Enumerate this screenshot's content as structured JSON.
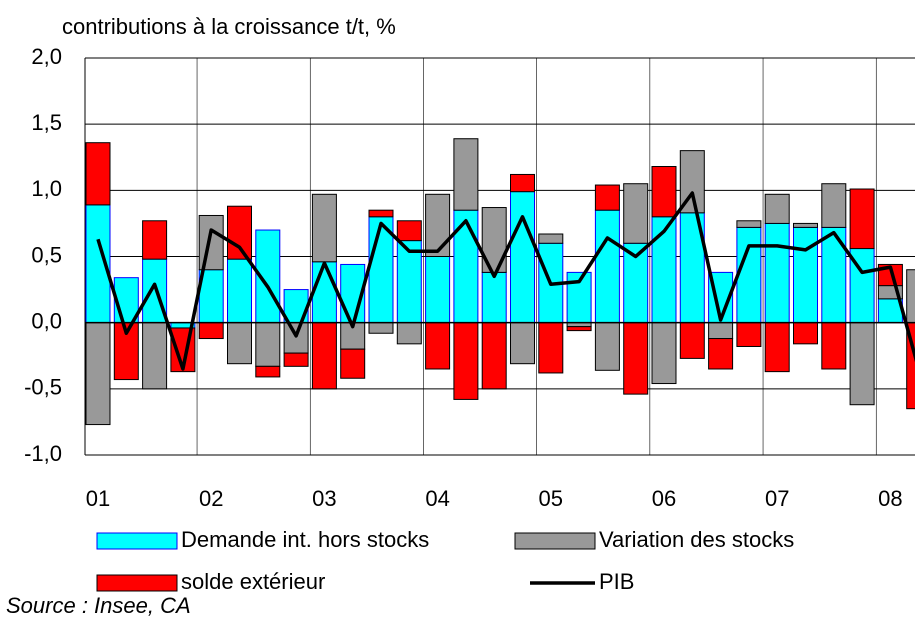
{
  "chart_data": {
    "type": "bar",
    "title": "contributions à la croissance t/t, %",
    "source": "Source : Insee, CA",
    "categories": [
      "01",
      null,
      null,
      null,
      "02",
      null,
      null,
      null,
      "03",
      null,
      null,
      null,
      "04",
      null,
      null,
      null,
      "05",
      null,
      null,
      null,
      "06",
      null,
      null,
      null,
      "07",
      null,
      null,
      null,
      "08",
      null
    ],
    "series": [
      {
        "name": "Demande int. hors stocks",
        "color": "#00ffff",
        "values": [
          0.89,
          0.34,
          0.48,
          -0.04,
          0.4,
          0.48,
          0.7,
          0.25,
          0.46,
          0.44,
          0.8,
          0.62,
          0.5,
          0.85,
          0.38,
          0.99,
          0.6,
          0.38,
          0.85,
          0.6,
          0.8,
          0.83,
          0.38,
          0.72,
          0.75,
          0.72,
          0.72,
          0.56,
          0.18,
          0
        ]
      },
      {
        "name": "Variation des stocks",
        "color": "#999999",
        "values": [
          -0.77,
          0,
          -0.5,
          0,
          0.41,
          -0.31,
          -0.33,
          -0.23,
          0.51,
          -0.2,
          -0.08,
          -0.16,
          0.47,
          0.54,
          0.49,
          -0.31,
          0.07,
          -0.03,
          -0.36,
          0.45,
          -0.46,
          0.47,
          -0.12,
          0.05,
          0.22,
          0.03,
          0.33,
          -0.62,
          0.1,
          0.4
        ]
      },
      {
        "name": "solde extérieur",
        "color": "#ff0000",
        "values": [
          0.47,
          -0.43,
          0.29,
          -0.33,
          -0.12,
          0.4,
          -0.08,
          -0.1,
          -0.5,
          -0.22,
          0.05,
          0.15,
          -0.35,
          -0.58,
          -0.5,
          0.13,
          -0.38,
          -0.03,
          0.19,
          -0.54,
          0.38,
          -0.27,
          -0.23,
          -0.18,
          -0.37,
          -0.16,
          -0.35,
          0.45,
          0.16,
          -0.65
        ]
      },
      {
        "name": "PIB",
        "type": "line",
        "color": "#000000",
        "values": [
          0.63,
          -0.08,
          0.29,
          -0.35,
          0.7,
          0.57,
          0.27,
          -0.1,
          0.45,
          -0.03,
          0.75,
          0.54,
          0.54,
          0.77,
          0.35,
          0.8,
          0.29,
          0.31,
          0.64,
          0.5,
          0.69,
          0.98,
          0.02,
          0.58,
          0.58,
          0.55,
          0.68,
          0.38,
          0.42,
          -0.35
        ]
      }
    ],
    "ylim": [
      -1,
      2
    ],
    "yticks": [
      {
        "value": -1,
        "label": "-1,0"
      },
      {
        "value": -0.5,
        "label": "-0,5"
      },
      {
        "value": 0,
        "label": "0,0"
      },
      {
        "value": 0.5,
        "label": "0,5"
      },
      {
        "value": 1,
        "label": "1,0"
      },
      {
        "value": 1.5,
        "label": "1,5"
      },
      {
        "value": 2,
        "label": "2,0"
      }
    ],
    "grid": true
  }
}
